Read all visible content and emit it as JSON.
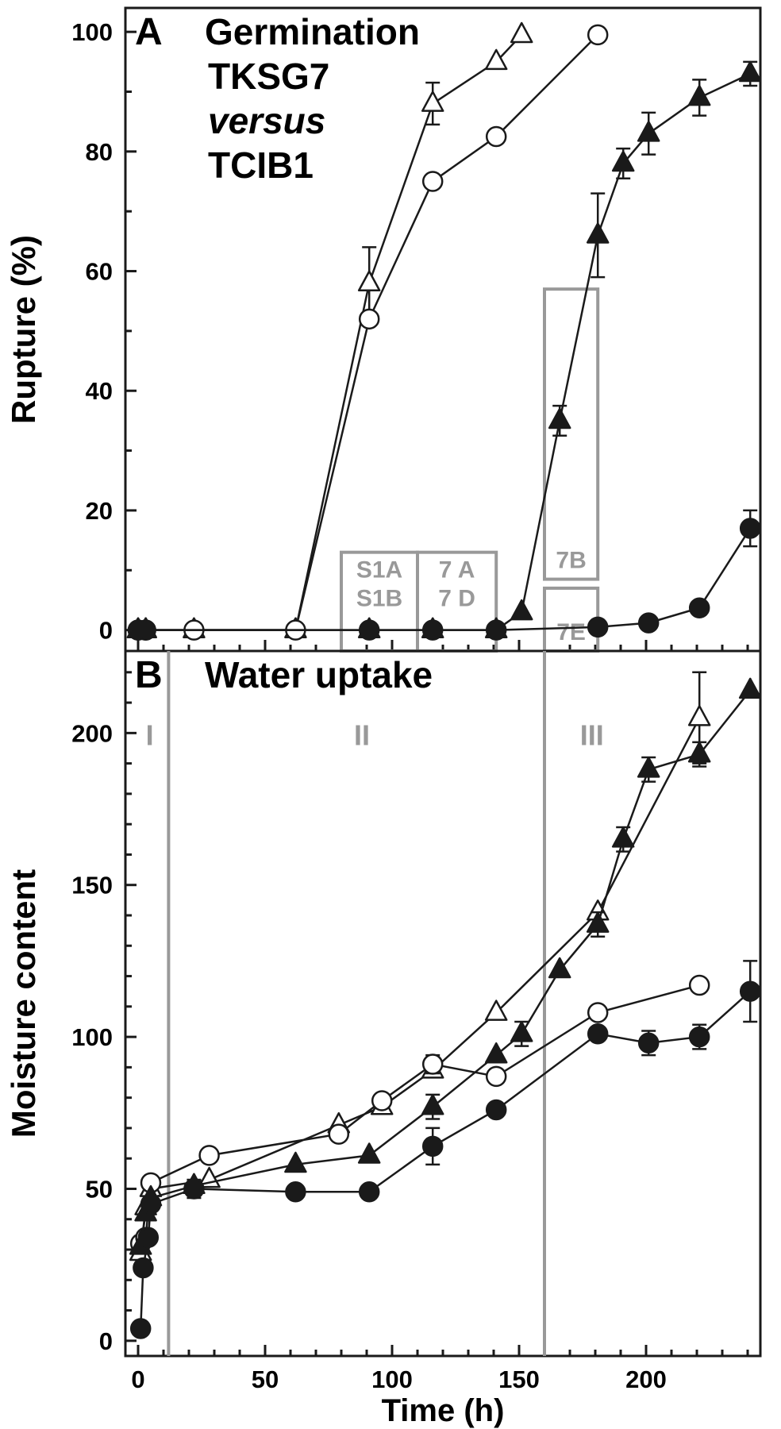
{
  "figure": {
    "x_axis": {
      "label": "Time (h)",
      "lim": [
        -5,
        245
      ],
      "major_ticks": [
        0,
        50,
        100,
        150,
        200
      ],
      "minor_step": 10
    }
  },
  "colors": {
    "series": "#1a1a1a",
    "annotation": "#999999",
    "frame": "#1a1a1a"
  },
  "chart_data": [
    {
      "type": "line",
      "panel_letter": "A",
      "title_lines": [
        "Germination",
        "TKSG7",
        "versus",
        "TCIB1"
      ],
      "xlabel": "Time (h)",
      "ylabel": "Rupture (%)",
      "xlim": [
        -5,
        245
      ],
      "ylim": [
        -3.5,
        104
      ],
      "yticks": [
        0,
        20,
        40,
        60,
        80,
        100
      ],
      "y_minor_step": 10,
      "grid": false,
      "series": [
        {
          "marker": "triangle-open",
          "points": [
            {
              "x": 0,
              "y": 0
            },
            {
              "x": 3,
              "y": 0
            },
            {
              "x": 22,
              "y": 0
            },
            {
              "x": 62,
              "y": 0
            },
            {
              "x": 91,
              "y": 58,
              "err": 6
            },
            {
              "x": 116,
              "y": 88,
              "err": 3.5
            },
            {
              "x": 141,
              "y": 95
            },
            {
              "x": 151,
              "y": 99.5
            }
          ]
        },
        {
          "marker": "circle-open",
          "points": [
            {
              "x": 0,
              "y": 0
            },
            {
              "x": 3,
              "y": 0
            },
            {
              "x": 22,
              "y": 0
            },
            {
              "x": 62,
              "y": 0
            },
            {
              "x": 91,
              "y": 52,
              "err": 1
            },
            {
              "x": 116,
              "y": 75
            },
            {
              "x": 141,
              "y": 82.5
            },
            {
              "x": 181,
              "y": 99.5
            }
          ]
        },
        {
          "marker": "triangle-filled",
          "points": [
            {
              "x": 0,
              "y": 0
            },
            {
              "x": 3,
              "y": 0
            },
            {
              "x": 91,
              "y": 0
            },
            {
              "x": 116,
              "y": 0
            },
            {
              "x": 141,
              "y": 0
            },
            {
              "x": 151,
              "y": 3
            },
            {
              "x": 166,
              "y": 35,
              "err": 2.5
            },
            {
              "x": 181,
              "y": 66,
              "err": 7
            },
            {
              "x": 191,
              "y": 78,
              "err": 2.5
            },
            {
              "x": 201,
              "y": 83,
              "err": 3.5
            },
            {
              "x": 221,
              "y": 89,
              "err": 3
            },
            {
              "x": 241,
              "y": 93,
              "err": 2
            }
          ]
        },
        {
          "marker": "circle-filled",
          "points": [
            {
              "x": 0,
              "y": 0
            },
            {
              "x": 3,
              "y": 0
            },
            {
              "x": 91,
              "y": 0
            },
            {
              "x": 116,
              "y": 0
            },
            {
              "x": 141,
              "y": 0
            },
            {
              "x": 181,
              "y": 0.5
            },
            {
              "x": 201,
              "y": 1.2
            },
            {
              "x": 221,
              "y": 3.7
            },
            {
              "x": 241,
              "y": 17,
              "err": 3
            }
          ]
        }
      ],
      "annotations": [
        {
          "lines": [
            "S1A",
            "S1B"
          ],
          "x0": 80,
          "x1": 110,
          "y0": -3.5,
          "y1": 13
        },
        {
          "lines": [
            "7 A",
            "7 D"
          ],
          "x0": 110,
          "x1": 141,
          "y0": -3.5,
          "y1": 13
        },
        {
          "lines": [
            "7B"
          ],
          "x0": 160,
          "x1": 181,
          "y0": 8.5,
          "y1": 57
        },
        {
          "lines": [
            "7E"
          ],
          "x0": 160,
          "x1": 181,
          "y0": -3.5,
          "y1": 7
        }
      ]
    },
    {
      "type": "line",
      "panel_letter": "B",
      "title_lines": [
        "Water uptake"
      ],
      "xlabel": "Time (h)",
      "ylabel": "Moisture content",
      "xlim": [
        -5,
        245
      ],
      "ylim": [
        -5,
        227
      ],
      "yticks": [
        0,
        50,
        100,
        150,
        200
      ],
      "y_minor_step": 10,
      "grid": false,
      "phase_lines": [
        12,
        160
      ],
      "phase_labels": [
        {
          "text": "I",
          "x": 3
        },
        {
          "text": "II",
          "x": 85
        },
        {
          "text": "III",
          "x": 174
        }
      ],
      "series": [
        {
          "marker": "triangle-open",
          "points": [
            {
              "x": 1,
              "y": 29
            },
            {
              "x": 3,
              "y": 44
            },
            {
              "x": 5,
              "y": 50
            },
            {
              "x": 28,
              "y": 53
            },
            {
              "x": 79,
              "y": 71
            },
            {
              "x": 96,
              "y": 77
            },
            {
              "x": 116,
              "y": 89
            },
            {
              "x": 141,
              "y": 108
            },
            {
              "x": 181,
              "y": 141
            },
            {
              "x": 221,
              "y": 205,
              "err": 15
            }
          ]
        },
        {
          "marker": "circle-open",
          "points": [
            {
              "x": 1,
              "y": 32
            },
            {
              "x": 3,
              "y": 34
            },
            {
              "x": 5,
              "y": 52
            },
            {
              "x": 28,
              "y": 61
            },
            {
              "x": 79,
              "y": 68
            },
            {
              "x": 96,
              "y": 79
            },
            {
              "x": 116,
              "y": 91,
              "err": 3
            },
            {
              "x": 141,
              "y": 87
            },
            {
              "x": 181,
              "y": 108
            },
            {
              "x": 221,
              "y": 117
            }
          ]
        },
        {
          "marker": "triangle-filled",
          "points": [
            {
              "x": 1,
              "y": 31
            },
            {
              "x": 3,
              "y": 42
            },
            {
              "x": 5,
              "y": 47
            },
            {
              "x": 22,
              "y": 51
            },
            {
              "x": 62,
              "y": 58
            },
            {
              "x": 91,
              "y": 61
            },
            {
              "x": 116,
              "y": 77,
              "err": 4
            },
            {
              "x": 141,
              "y": 94
            },
            {
              "x": 151,
              "y": 101,
              "err": 4
            },
            {
              "x": 166,
              "y": 122
            },
            {
              "x": 181,
              "y": 137,
              "err": 4
            },
            {
              "x": 191,
              "y": 165,
              "err": 4
            },
            {
              "x": 201,
              "y": 188,
              "err": 4
            },
            {
              "x": 221,
              "y": 193,
              "err": 4
            },
            {
              "x": 241,
              "y": 214
            }
          ]
        },
        {
          "marker": "circle-filled",
          "points": [
            {
              "x": 1,
              "y": 4
            },
            {
              "x": 2,
              "y": 24
            },
            {
              "x": 4,
              "y": 34
            },
            {
              "x": 5,
              "y": 45
            },
            {
              "x": 22,
              "y": 50,
              "err": 3
            },
            {
              "x": 62,
              "y": 49
            },
            {
              "x": 91,
              "y": 49
            },
            {
              "x": 116,
              "y": 64,
              "err": 6
            },
            {
              "x": 141,
              "y": 76
            },
            {
              "x": 181,
              "y": 101
            },
            {
              "x": 201,
              "y": 98,
              "err": 4
            },
            {
              "x": 221,
              "y": 100,
              "err": 4
            },
            {
              "x": 241,
              "y": 115,
              "err": 10
            }
          ]
        }
      ]
    }
  ]
}
